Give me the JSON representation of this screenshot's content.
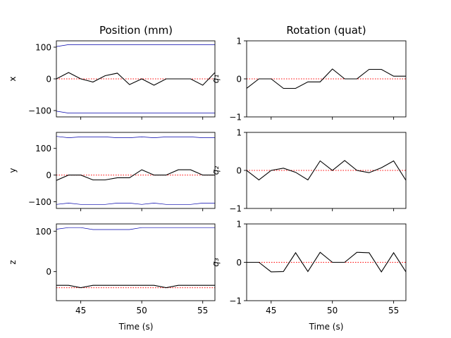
{
  "titles": {
    "left": "Position (mm)",
    "right": "Rotation (quat)"
  },
  "colors": {
    "signal": "#000000",
    "bounds": "#0000aa",
    "reference": "#ff0000"
  },
  "chart_data": [
    {
      "type": "line",
      "name": "position-x",
      "ylabel": "x",
      "xlim": [
        43,
        56
      ],
      "ylim": [
        -120,
        120
      ],
      "xticks": [
        45,
        50,
        55
      ],
      "yticks": [
        -100,
        0,
        100
      ],
      "ytick_labels": [
        "−100",
        "0",
        "100"
      ],
      "reference": 0,
      "x": [
        43,
        44,
        45,
        46,
        47,
        48,
        49,
        50,
        51,
        52,
        53,
        54,
        55,
        56
      ],
      "series": [
        {
          "name": "signal",
          "values": [
            0,
            20,
            0,
            -10,
            10,
            18,
            -18,
            0,
            -20,
            0,
            0,
            0,
            -20,
            20
          ]
        },
        {
          "name": "upper-bound",
          "values": [
            102,
            108,
            108,
            108,
            108,
            108,
            108,
            108,
            108,
            108,
            108,
            108,
            108,
            108
          ]
        },
        {
          "name": "lower-bound",
          "values": [
            -102,
            -108,
            -108,
            -108,
            -108,
            -108,
            -108,
            -108,
            -108,
            -108,
            -108,
            -108,
            -108,
            -108
          ]
        }
      ]
    },
    {
      "type": "line",
      "name": "position-y",
      "ylabel": "y",
      "xlim": [
        43,
        56
      ],
      "ylim": [
        -125,
        160
      ],
      "xticks": [
        45,
        50,
        55
      ],
      "yticks": [
        -100,
        0,
        100
      ],
      "ytick_labels": [
        "−100",
        "0",
        "100"
      ],
      "reference": 0,
      "x": [
        43,
        44,
        45,
        46,
        47,
        48,
        49,
        50,
        51,
        52,
        53,
        54,
        55,
        56
      ],
      "series": [
        {
          "name": "signal",
          "values": [
            -20,
            0,
            0,
            -18,
            -18,
            -10,
            -10,
            20,
            0,
            0,
            20,
            20,
            0,
            0
          ]
        },
        {
          "name": "upper-bound",
          "values": [
            145,
            140,
            143,
            143,
            143,
            140,
            140,
            143,
            140,
            143,
            143,
            143,
            140,
            140
          ]
        },
        {
          "name": "lower-bound",
          "values": [
            -110,
            -105,
            -110,
            -110,
            -110,
            -105,
            -105,
            -110,
            -105,
            -110,
            -110,
            -110,
            -105,
            -105
          ]
        }
      ]
    },
    {
      "type": "line",
      "name": "position-z",
      "ylabel": "z",
      "xlim": [
        43,
        56
      ],
      "ylim": [
        -72,
        118
      ],
      "xticks": [
        45,
        50,
        55
      ],
      "yticks": [
        0,
        100
      ],
      "ytick_labels": [
        "0",
        "100"
      ],
      "reference": -40,
      "x": [
        43,
        44,
        45,
        46,
        47,
        48,
        49,
        50,
        51,
        52,
        53,
        54,
        55,
        56
      ],
      "series": [
        {
          "name": "signal",
          "values": [
            -34,
            -34,
            -40,
            -34,
            -34,
            -34,
            -34,
            -34,
            -34,
            -40,
            -34,
            -34,
            -34,
            -34
          ]
        },
        {
          "name": "upper-bound",
          "values": [
            105,
            109,
            109,
            104,
            104,
            104,
            104,
            109,
            109,
            109,
            109,
            109,
            109,
            109
          ]
        }
      ]
    },
    {
      "type": "line",
      "name": "rotation-q1",
      "ylabel": "q₁",
      "xlim": [
        43,
        56
      ],
      "ylim": [
        -1,
        1
      ],
      "xticks": [
        45,
        50,
        55
      ],
      "yticks": [
        -1,
        0,
        1
      ],
      "ytick_labels": [
        "−1",
        "0",
        "1"
      ],
      "reference": 0,
      "x": [
        43,
        44,
        45,
        46,
        47,
        48,
        49,
        50,
        51,
        52,
        53,
        54,
        55,
        56
      ],
      "series": [
        {
          "name": "signal",
          "values": [
            -0.25,
            0,
            0,
            -0.25,
            -0.25,
            -0.08,
            -0.08,
            0.26,
            0,
            0,
            0.25,
            0.25,
            0.07,
            0.07
          ]
        }
      ]
    },
    {
      "type": "line",
      "name": "rotation-q2",
      "ylabel": "q₂",
      "xlim": [
        43,
        56
      ],
      "ylim": [
        -1,
        1
      ],
      "xticks": [
        45,
        50,
        55
      ],
      "yticks": [
        -1,
        0,
        1
      ],
      "ytick_labels": [
        "−1",
        "0",
        "1"
      ],
      "reference": 0,
      "x": [
        43,
        44,
        45,
        46,
        47,
        48,
        49,
        50,
        51,
        52,
        53,
        54,
        55,
        56
      ],
      "series": [
        {
          "name": "signal",
          "values": [
            0,
            -0.25,
            0,
            0.06,
            -0.05,
            -0.25,
            0.25,
            0,
            0.26,
            0,
            -0.06,
            0.07,
            0.25,
            -0.26
          ]
        }
      ]
    },
    {
      "type": "line",
      "name": "rotation-q3",
      "ylabel": "q₃",
      "xlim": [
        43,
        56
      ],
      "ylim": [
        -1,
        1
      ],
      "xticks": [
        45,
        50,
        55
      ],
      "yticks": [
        -1,
        0,
        1
      ],
      "ytick_labels": [
        "−1",
        "0",
        "1"
      ],
      "reference": 0,
      "x": [
        43,
        44,
        45,
        46,
        47,
        48,
        49,
        50,
        51,
        52,
        53,
        54,
        55,
        56
      ],
      "series": [
        {
          "name": "signal",
          "values": [
            0,
            0,
            -0.25,
            -0.24,
            0.25,
            -0.24,
            0.26,
            0,
            0,
            0.26,
            0.25,
            -0.25,
            0.25,
            -0.25
          ]
        }
      ]
    }
  ],
  "xlabel": "Time (s)"
}
